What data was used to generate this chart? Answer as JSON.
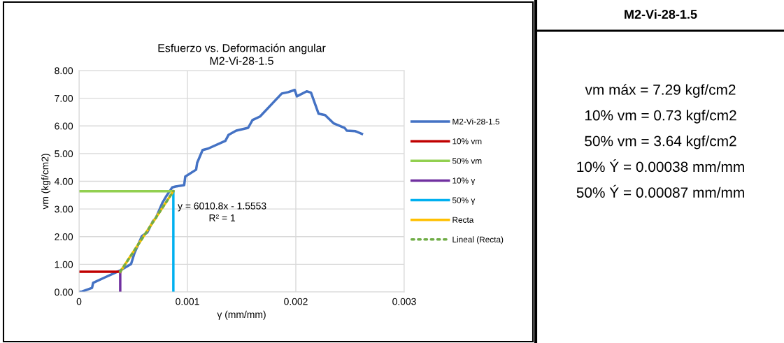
{
  "chart_data": [
    {
      "type": "line",
      "title": "Esfuerzo vs. Deformación angular\nM2-Vi-28-1.5",
      "xlabel": "γ (mm/mm)",
      "ylabel": "vm (kgf/cm2)",
      "xlim": [
        0,
        0.003
      ],
      "xticks": [
        0,
        0.001,
        0.002,
        0.003
      ],
      "ylim": [
        0,
        8
      ],
      "yticks": [
        {
          "value": 0,
          "label": "0.00"
        },
        {
          "value": 1,
          "label": "1.00"
        },
        {
          "value": 2,
          "label": "2.00"
        },
        {
          "value": 3,
          "label": "3.00"
        },
        {
          "value": 4,
          "label": "4.00"
        },
        {
          "value": 5,
          "label": "5.00"
        },
        {
          "value": 6,
          "label": "6.00"
        },
        {
          "value": 7,
          "label": "7.00"
        },
        {
          "value": 8,
          "label": "8.00"
        }
      ],
      "grid": true,
      "legend": "right",
      "marker": "none",
      "series": [
        {
          "name": "M2-Vi-28-1.5",
          "color": "#4472c4",
          "x": [
            0,
            3e-05,
            0.00012,
            0.00013,
            0.00024,
            0.00037,
            0.00048,
            0.00051,
            0.00058,
            0.00063,
            0.00068,
            0.00071,
            0.00077,
            0.0008,
            0.00086,
            0.00089,
            0.00097,
            0.00098,
            0.00108,
            0.00109,
            0.00114,
            0.00119,
            0.00135,
            0.00138,
            0.00145,
            0.00156,
            0.0016,
            0.00167,
            0.00187,
            0.00193,
            0.00199,
            0.00201,
            0.0021,
            0.00214,
            0.00221,
            0.00227,
            0.00235,
            0.00245,
            0.00247,
            0.00255,
            0.00261
          ],
          "values": [
            0,
            0.02,
            0.15,
            0.33,
            0.53,
            0.76,
            1.01,
            1.39,
            2.02,
            2.15,
            2.55,
            2.68,
            3.23,
            3.43,
            3.78,
            3.81,
            3.86,
            4.17,
            4.42,
            4.67,
            5.13,
            5.18,
            5.46,
            5.68,
            5.83,
            5.93,
            6.21,
            6.34,
            7.17,
            7.22,
            7.3,
            7.07,
            7.25,
            7.2,
            6.44,
            6.39,
            6.09,
            5.93,
            5.83,
            5.81,
            5.71
          ]
        },
        {
          "name": "10% vm",
          "color": "#c00000",
          "x": [
            0,
            0.00038
          ],
          "values": [
            0.73,
            0.73
          ]
        },
        {
          "name": "50% vm",
          "color": "#92d050",
          "x": [
            0,
            0.00087
          ],
          "values": [
            3.64,
            3.64
          ]
        },
        {
          "name": "10% γ",
          "color": "#7030a0",
          "x": [
            0.00038,
            0.00038
          ],
          "values": [
            0,
            0.73
          ]
        },
        {
          "name": "50% γ",
          "color": "#00b0f0",
          "x": [
            0.00087,
            0.00087
          ],
          "values": [
            0,
            3.64
          ]
        },
        {
          "name": "Recta",
          "color": "#ffc000",
          "x": [
            0.00038,
            0.00087
          ],
          "values": [
            0.73,
            3.64
          ]
        },
        {
          "name": "Lineal (Recta)",
          "color": "#70ad47",
          "line_style": "dotted",
          "x": [
            0.00038,
            0.00087
          ],
          "values": [
            0.73,
            3.64
          ]
        }
      ],
      "annotations": [
        "y = 6010.8x - 1.5553",
        "R² = 1"
      ]
    },
    {
      "type": "other",
      "title": "M2-Vi-28-1.5",
      "annotations": [
        "vm máx = 7.29 kgf/cm2",
        "10% vm = 0.73 kgf/cm2",
        "50% vm = 3.64 kgf/cm2",
        "10% Ý = 0.00038 mm/mm",
        "50% Ý = 0.00087 mm/mm"
      ]
    }
  ]
}
